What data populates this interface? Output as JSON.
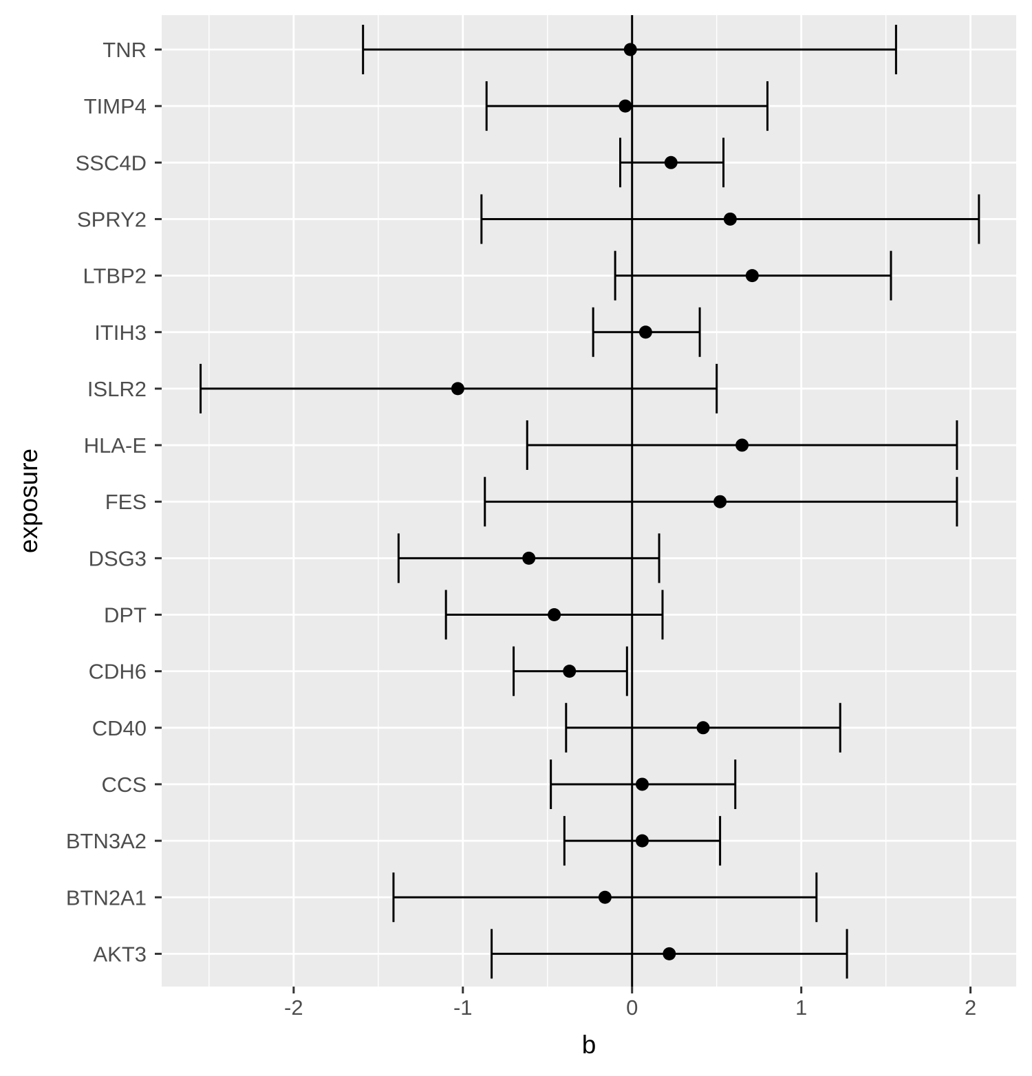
{
  "chart_data": {
    "type": "errorbar",
    "title": "",
    "xlabel": "b",
    "ylabel": "exposure",
    "xlim": [
      -2.78,
      2.27
    ],
    "x_ticks": [
      -2,
      -1,
      0,
      1,
      2
    ],
    "x_tick_labels": [
      "-2",
      "-1",
      "0",
      "1",
      "2"
    ],
    "reference_line_x": 0,
    "grid": true,
    "categories": [
      "TNR",
      "TIMP4",
      "SSC4D",
      "SPRY2",
      "LTBP2",
      "ITIH3",
      "ISLR2",
      "HLA-E",
      "FES",
      "DSG3",
      "DPT",
      "CDH6",
      "CD40",
      "CCS",
      "BTN3A2",
      "BTN2A1",
      "AKT3"
    ],
    "points": [
      {
        "exposure": "TNR",
        "b": -0.01,
        "lower": -1.59,
        "upper": 1.56
      },
      {
        "exposure": "TIMP4",
        "b": -0.04,
        "lower": -0.86,
        "upper": 0.8
      },
      {
        "exposure": "SSC4D",
        "b": 0.23,
        "lower": -0.07,
        "upper": 0.54
      },
      {
        "exposure": "SPRY2",
        "b": 0.58,
        "lower": -0.89,
        "upper": 2.05
      },
      {
        "exposure": "LTBP2",
        "b": 0.71,
        "lower": -0.1,
        "upper": 1.53
      },
      {
        "exposure": "ITIH3",
        "b": 0.08,
        "lower": -0.23,
        "upper": 0.4
      },
      {
        "exposure": "ISLR2",
        "b": -1.03,
        "lower": -2.55,
        "upper": 0.5
      },
      {
        "exposure": "HLA-E",
        "b": 0.65,
        "lower": -0.62,
        "upper": 1.92
      },
      {
        "exposure": "FES",
        "b": 0.52,
        "lower": -0.87,
        "upper": 1.92
      },
      {
        "exposure": "DSG3",
        "b": -0.61,
        "lower": -1.38,
        "upper": 0.16
      },
      {
        "exposure": "DPT",
        "b": -0.46,
        "lower": -1.1,
        "upper": 0.18
      },
      {
        "exposure": "CDH6",
        "b": -0.37,
        "lower": -0.7,
        "upper": -0.03
      },
      {
        "exposure": "CD40",
        "b": 0.42,
        "lower": -0.39,
        "upper": 1.23
      },
      {
        "exposure": "CCS",
        "b": 0.06,
        "lower": -0.48,
        "upper": 0.61
      },
      {
        "exposure": "BTN3A2",
        "b": 0.06,
        "lower": -0.4,
        "upper": 0.52
      },
      {
        "exposure": "BTN2A1",
        "b": -0.16,
        "lower": -1.41,
        "upper": 1.09
      },
      {
        "exposure": "AKT3",
        "b": 0.22,
        "lower": -0.83,
        "upper": 1.27
      }
    ],
    "colors": {
      "panel_background": "#ebebeb",
      "grid": "#ffffff",
      "marks": "#000000",
      "tick_label": "#4d4d4d",
      "axis_title": "#000000"
    }
  }
}
